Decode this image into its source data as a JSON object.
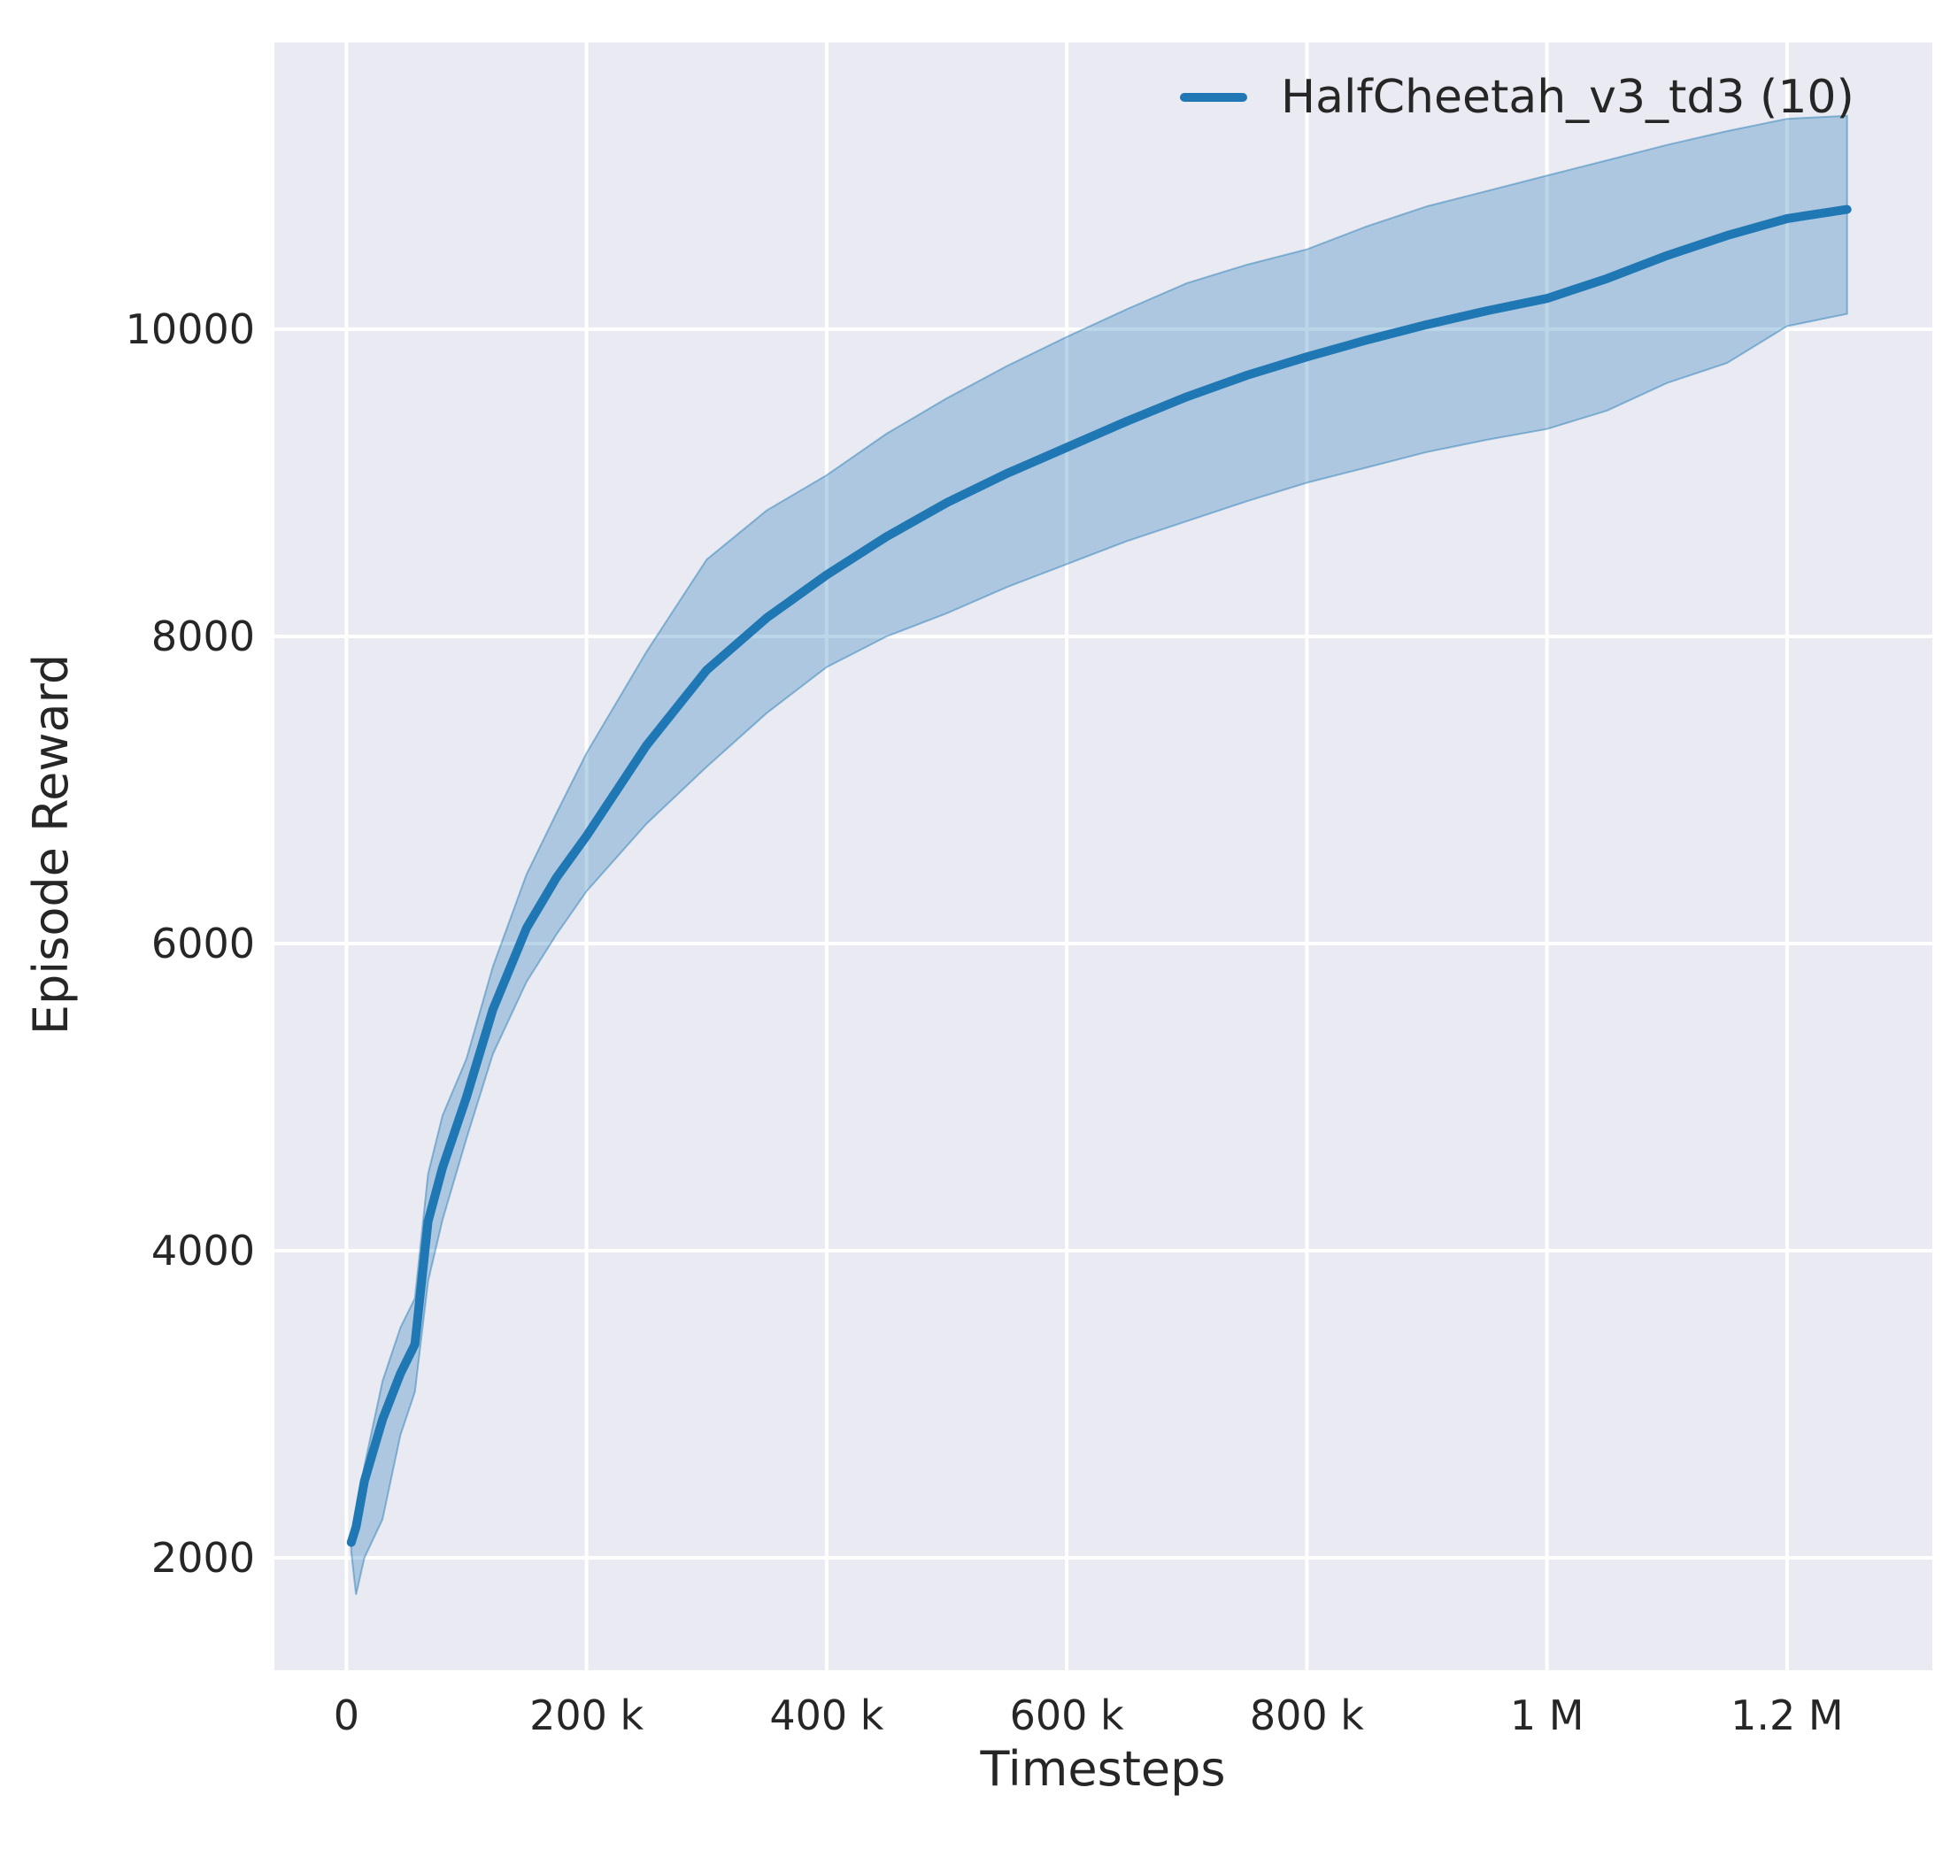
{
  "figure": {
    "background": "#ffffff"
  },
  "chart_data": {
    "type": "line",
    "title": "",
    "xlabel": "Timesteps",
    "ylabel": "Episode Reward",
    "grid": true,
    "legend_position": "upper right",
    "colors": {
      "line": "#1f77b4",
      "band_fill_alpha": 0.3,
      "plot_background": "#eaeaf2",
      "grid_color": "#ffffff",
      "text_color": "#262626"
    },
    "axes": {
      "x_unit": "timesteps (thousands)",
      "x_range_k": [
        -60,
        1321
      ],
      "y_range": [
        1268,
        11867
      ],
      "xticks": [
        {
          "value_k": 0,
          "label": "0"
        },
        {
          "value_k": 200,
          "label": "200 k"
        },
        {
          "value_k": 400,
          "label": "400 k"
        },
        {
          "value_k": 600,
          "label": "600 k"
        },
        {
          "value_k": 800,
          "label": "800 k"
        },
        {
          "value_k": 1000,
          "label": "1 M"
        },
        {
          "value_k": 1200,
          "label": "1.2 M"
        }
      ],
      "yticks": [
        {
          "value": 2000,
          "label": "2000"
        },
        {
          "value": 4000,
          "label": "4000"
        },
        {
          "value": 6000,
          "label": "6000"
        },
        {
          "value": 8000,
          "label": "8000"
        },
        {
          "value": 10000,
          "label": "10000"
        }
      ]
    },
    "legend": [
      {
        "label": "HalfCheetah_v3_td3 (10)",
        "color": "#1f77b4"
      }
    ],
    "series": [
      {
        "name": "HalfCheetah_v3_td3 (10)",
        "color": "#1f77b4",
        "x_k": [
          4,
          8,
          15,
          30,
          45,
          57,
          68,
          80,
          100,
          122,
          150,
          175,
          200,
          250,
          300,
          350,
          400,
          450,
          500,
          550,
          600,
          650,
          700,
          750,
          800,
          850,
          900,
          950,
          1000,
          1050,
          1100,
          1150,
          1200,
          1250
        ],
        "mean": [
          2100,
          2200,
          2500,
          2900,
          3200,
          3390,
          4190,
          4540,
          5000,
          5570,
          6100,
          6430,
          6700,
          7290,
          7780,
          8120,
          8400,
          8650,
          8870,
          9060,
          9230,
          9400,
          9560,
          9700,
          9820,
          9930,
          10030,
          10120,
          10200,
          10330,
          10480,
          10610,
          10720,
          10780
        ],
        "lo": [
          2040,
          1760,
          2000,
          2250,
          2800,
          3080,
          3800,
          4200,
          4730,
          5280,
          5750,
          6060,
          6340,
          6780,
          7150,
          7500,
          7800,
          8000,
          8150,
          8320,
          8470,
          8620,
          8750,
          8880,
          9000,
          9100,
          9200,
          9280,
          9350,
          9470,
          9650,
          9780,
          10020,
          10100
        ],
        "hi": [
          2160,
          2280,
          2600,
          3150,
          3500,
          3690,
          4500,
          4880,
          5250,
          5850,
          6450,
          6850,
          7240,
          7900,
          8500,
          8820,
          9050,
          9320,
          9550,
          9760,
          9950,
          10130,
          10300,
          10420,
          10520,
          10670,
          10800,
          10900,
          11000,
          11100,
          11200,
          11290,
          11370,
          11390
        ]
      }
    ]
  }
}
